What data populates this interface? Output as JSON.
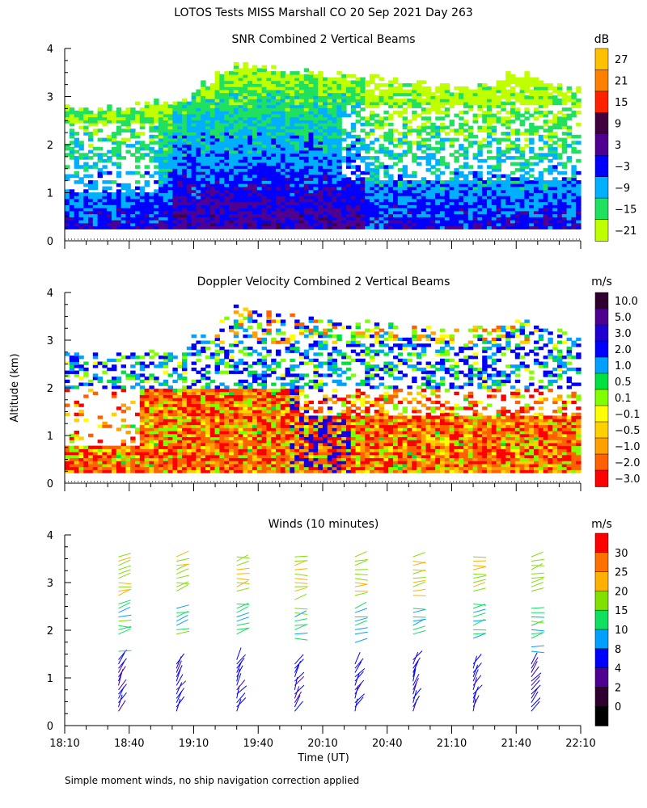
{
  "figure": {
    "title": "LOTOS Tests MISS Marshall CO  20 Sep 2021 Day 263",
    "footnote": "Simple moment winds, no ship navigation correction applied",
    "ylabel": "Altitude (km)",
    "xlabel": "Time (UT)"
  },
  "chart_data": [
    {
      "type": "heatmap",
      "title": "SNR Combined 2 Vertical Beams",
      "unit": "dB",
      "xlim": [
        "18:10",
        "22:10"
      ],
      "xticks": [
        "18:10",
        "18:40",
        "19:10",
        "19:40",
        "20:10",
        "20:40",
        "21:10",
        "21:40",
        "22:10"
      ],
      "ylim": [
        0,
        4
      ],
      "yticks": [
        0,
        1,
        2,
        3,
        4
      ],
      "colorbar": {
        "labels": [
          "27",
          "21",
          "15",
          "9",
          "3",
          "−3",
          "−9",
          "−15",
          "−21"
        ],
        "colors": [
          "#ffc000",
          "#ff8000",
          "#ff2000",
          "#400040",
          "#500090",
          "#0000ff",
          "#00b0ff",
          "#20e060",
          "#c0ff00"
        ]
      }
    },
    {
      "type": "heatmap",
      "title": "Doppler Velocity Combined 2 Vertical Beams",
      "unit": "m/s",
      "ylim": [
        0,
        4
      ],
      "yticks": [
        0,
        1,
        2,
        3,
        4
      ],
      "colorbar": {
        "labels": [
          "10.0",
          "5.0",
          "3.0",
          "2.0",
          "1.0",
          "0.5",
          "0.1",
          "−0.1",
          "−0.5",
          "−1.0",
          "−2.0",
          "−3.0"
        ],
        "colors": [
          "#300030",
          "#500090",
          "#2000d0",
          "#0000ff",
          "#00a0ff",
          "#00e040",
          "#80ff00",
          "#ffff00",
          "#ffd000",
          "#ffa000",
          "#ff6000",
          "#ff0000"
        ]
      }
    },
    {
      "type": "scatter",
      "title": "Winds (10 minutes)",
      "unit": "m/s",
      "ylim": [
        0,
        4
      ],
      "yticks": [
        0,
        1,
        2,
        3,
        4
      ],
      "colorbar": {
        "labels": [
          "30",
          "25",
          "20",
          "15",
          "10",
          "8",
          "4",
          "2",
          "0"
        ],
        "colors": [
          "#ff0000",
          "#ff7000",
          "#ffb000",
          "#80e000",
          "#10e060",
          "#00a0ff",
          "#0000ff",
          "#500090",
          "#300030",
          "#000000"
        ]
      },
      "profile_times": [
        "18:35",
        "19:02",
        "19:30",
        "19:57",
        "20:25",
        "20:52",
        "21:20",
        "21:47"
      ]
    }
  ]
}
